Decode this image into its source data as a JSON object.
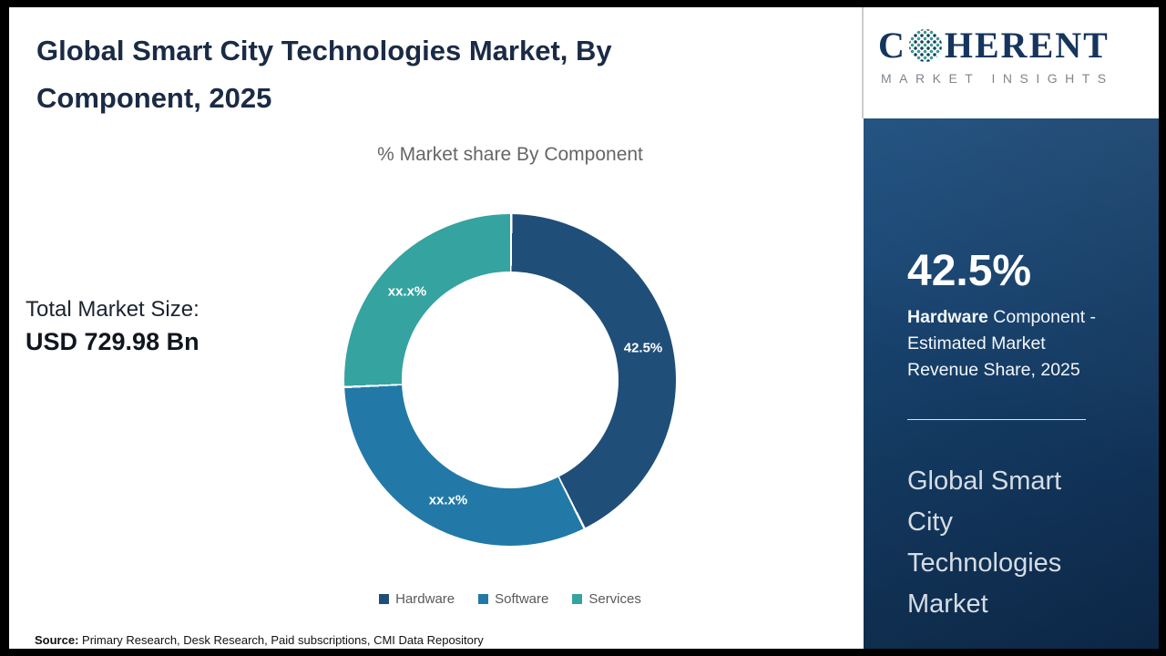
{
  "header": {
    "title": "Global Smart City Technologies Market, By Component, 2025"
  },
  "logo": {
    "prefix": "C",
    "suffix": "HERENT",
    "subtitle": "MARKET INSIGHTS"
  },
  "left": {
    "market_size_label": "Total Market Size:",
    "market_size_value": "USD 729.98 Bn"
  },
  "chart_data": {
    "type": "pie",
    "donut": true,
    "title": "% Market share By Component",
    "categories": [
      "Hardware",
      "Software",
      "Services"
    ],
    "values": [
      42.5,
      31.7,
      25.8
    ],
    "labels": [
      "42.5%",
      "xx.x%",
      "xx.x%"
    ],
    "colors": [
      "#1f4e79",
      "#2279a8",
      "#35a3a0"
    ],
    "start_angle_deg": 0,
    "legend_position": "bottom"
  },
  "panel": {
    "highlight_value": "42.5%",
    "desc_bold": "Hardware",
    "desc_rest": " Component - Estimated Market Revenue Share, 2025",
    "title": "Global Smart City Technologies Market"
  },
  "footer": {
    "source_label": "Source:",
    "source_text": " Primary Research, Desk Research, Paid subscriptions, CMI Data Repository"
  }
}
